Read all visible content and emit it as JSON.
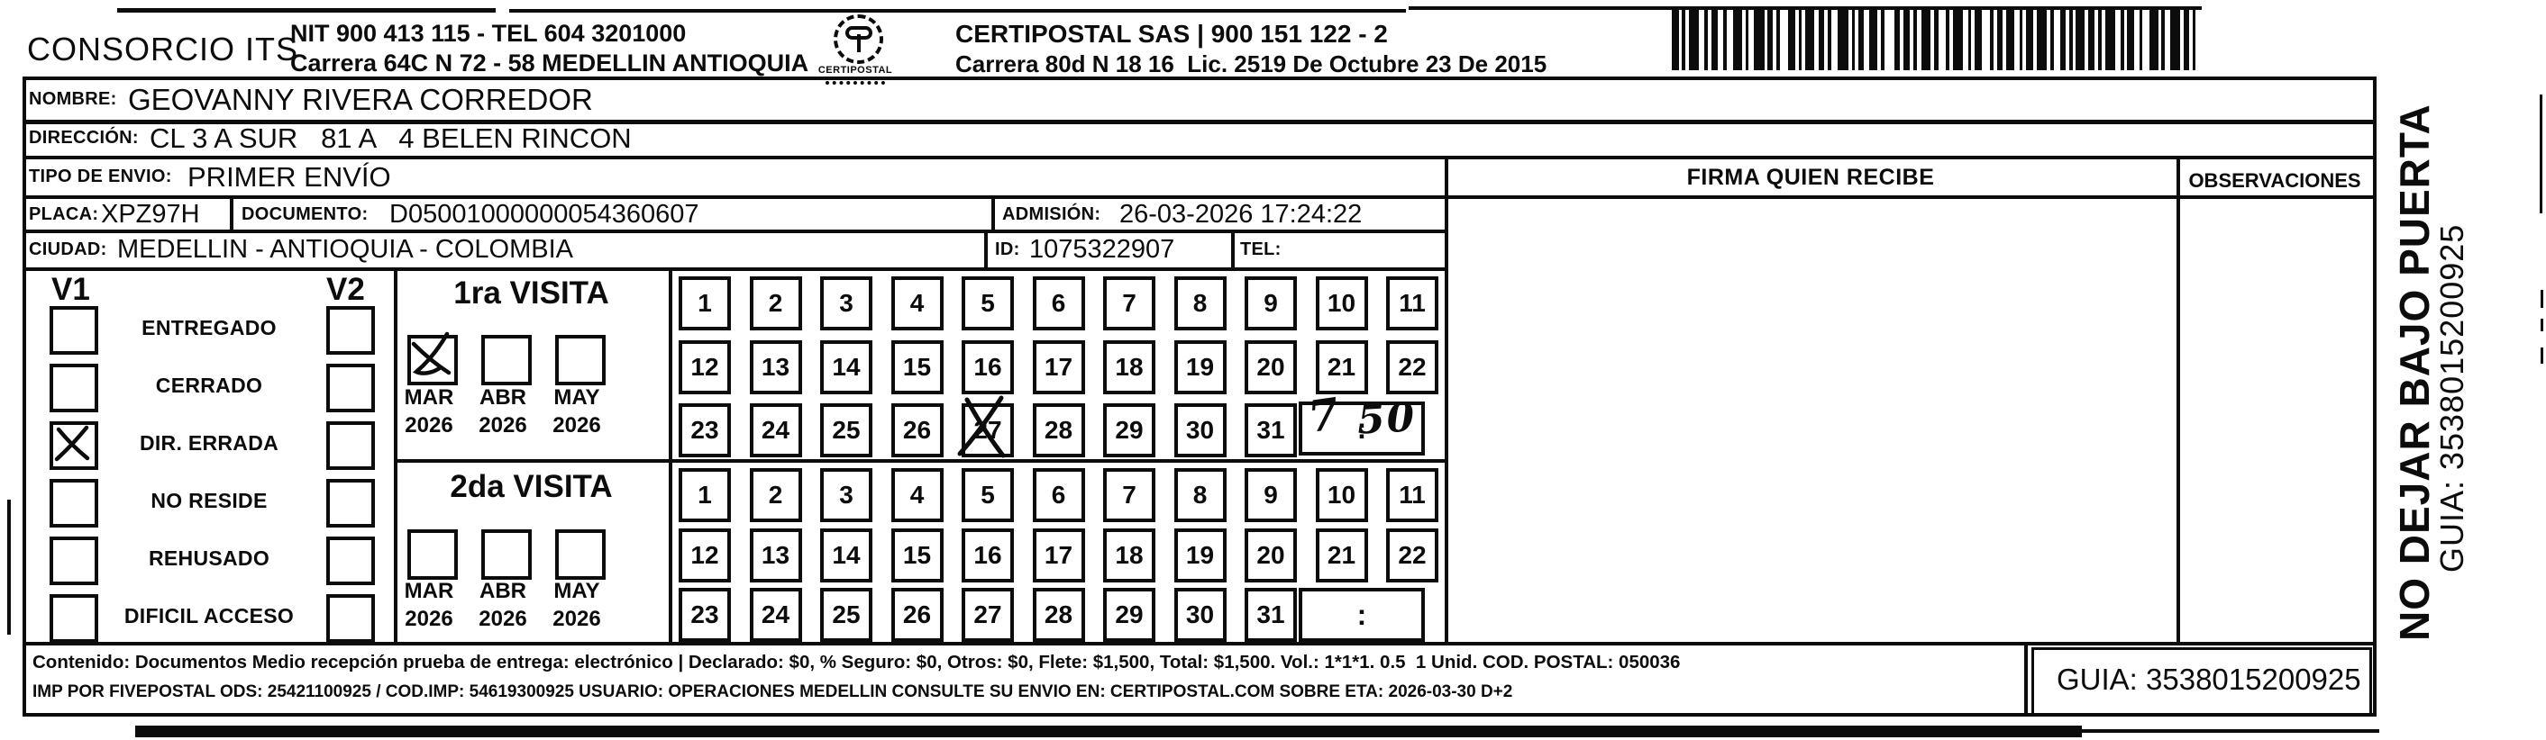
{
  "ink": "#0c0c0c",
  "header": {
    "company": "CONSORCIO ITS",
    "nit_line1": "NIT 900 413 115 - TEL 604 3201000",
    "nit_line2": "Carrera 64C N 72 - 58 MEDELLIN ANTIOQUIA",
    "logo_caption": "CERTIPOSTAL",
    "certipostal_line1": "CERTIPOSTAL SAS | 900 151 122 - 2",
    "certipostal_line2": "Carrera 80d N 18 16  Lic. 2519 De Octubre 23 De 2015"
  },
  "shipment": {
    "nombre_label": "NOMBRE:",
    "nombre": "GEOVANNY RIVERA CORREDOR",
    "direccion_label": "DIRECCIÓN:",
    "direccion": "CL 3 A SUR   81 A   4 BELEN RINCON",
    "tipo_label": "TIPO DE ENVIO:",
    "tipo": "PRIMER ENVÍO",
    "placa_label": "PLACA:",
    "placa": "XPZ97H",
    "documento_label": "DOCUMENTO:",
    "documento": "D05001000000054360607",
    "admision_label": "ADMISIÓN:",
    "admision": "26-03-2026 17:24:22",
    "ciudad_label": "CIUDAD:",
    "ciudad": "MEDELLIN - ANTIOQUIA - COLOMBIA",
    "id_label": "ID:",
    "id": "1075322907",
    "tel_label": "TEL:",
    "tel": ""
  },
  "table_headers": {
    "firma": "FIRMA QUIEN RECIBE",
    "observaciones": "OBSERVACIONES"
  },
  "status_panel": {
    "col1": "V1",
    "col2": "V2",
    "options": [
      {
        "label": "ENTREGADO",
        "v1": false,
        "v2": false
      },
      {
        "label": "CERRADO",
        "v1": false,
        "v2": false
      },
      {
        "label": "DIR. ERRADA",
        "v1": true,
        "v2": false
      },
      {
        "label": "NO RESIDE",
        "v1": false,
        "v2": false
      },
      {
        "label": "REHUSADO",
        "v1": false,
        "v2": false
      },
      {
        "label": "DIFICIL ACCESO",
        "v1": false,
        "v2": false
      }
    ]
  },
  "visits": [
    {
      "title": "1ra VISITA",
      "months": [
        {
          "label": "MAR",
          "year": "2026",
          "checked": true
        },
        {
          "label": "ABR",
          "year": "2026",
          "checked": false
        },
        {
          "label": "MAY",
          "year": "2026",
          "checked": false
        }
      ],
      "days": [
        1,
        2,
        3,
        4,
        5,
        6,
        7,
        8,
        9,
        10,
        11,
        12,
        13,
        14,
        15,
        16,
        17,
        18,
        19,
        20,
        21,
        22,
        23,
        24,
        25,
        26,
        27,
        28,
        29,
        30,
        31
      ],
      "crossed_day": 27,
      "time_separator": ":",
      "time_hour": "7",
      "time_minutes": "50"
    },
    {
      "title": "2da VISITA",
      "months": [
        {
          "label": "MAR",
          "year": "2026",
          "checked": false
        },
        {
          "label": "ABR",
          "year": "2026",
          "checked": false
        },
        {
          "label": "MAY",
          "year": "2026",
          "checked": false
        }
      ],
      "days": [
        1,
        2,
        3,
        4,
        5,
        6,
        7,
        8,
        9,
        10,
        11,
        12,
        13,
        14,
        15,
        16,
        17,
        18,
        19,
        20,
        21,
        22,
        23,
        24,
        25,
        26,
        27,
        28,
        29,
        30,
        31
      ],
      "crossed_day": null,
      "time_separator": ":",
      "time_hour": "",
      "time_minutes": ""
    }
  ],
  "footer": {
    "line1": "Contenido: Documentos Medio recepción prueba de entrega: electrónico | Declarado: $0, % Seguro: $0, Otros: $0, Flete: $1,500, Total: $1,500. Vol.: 1*1*1. 0.5  1 Unid. COD. POSTAL: 050036",
    "line2": "IMP POR FIVEPOSTAL ODS: 25421100925 / COD.IMP: 54619300925 USUARIO: OPERACIONES MEDELLIN CONSULTE SU ENVIO EN: CERTIPOSTAL.COM SOBRE ETA: 2026-03-30 D+2",
    "guia": "GUIA: 3538015200925"
  },
  "side_panel": {
    "warning": "NO DEJAR BAJO PUERTA",
    "guia": "GUIA: 3538015200925"
  }
}
